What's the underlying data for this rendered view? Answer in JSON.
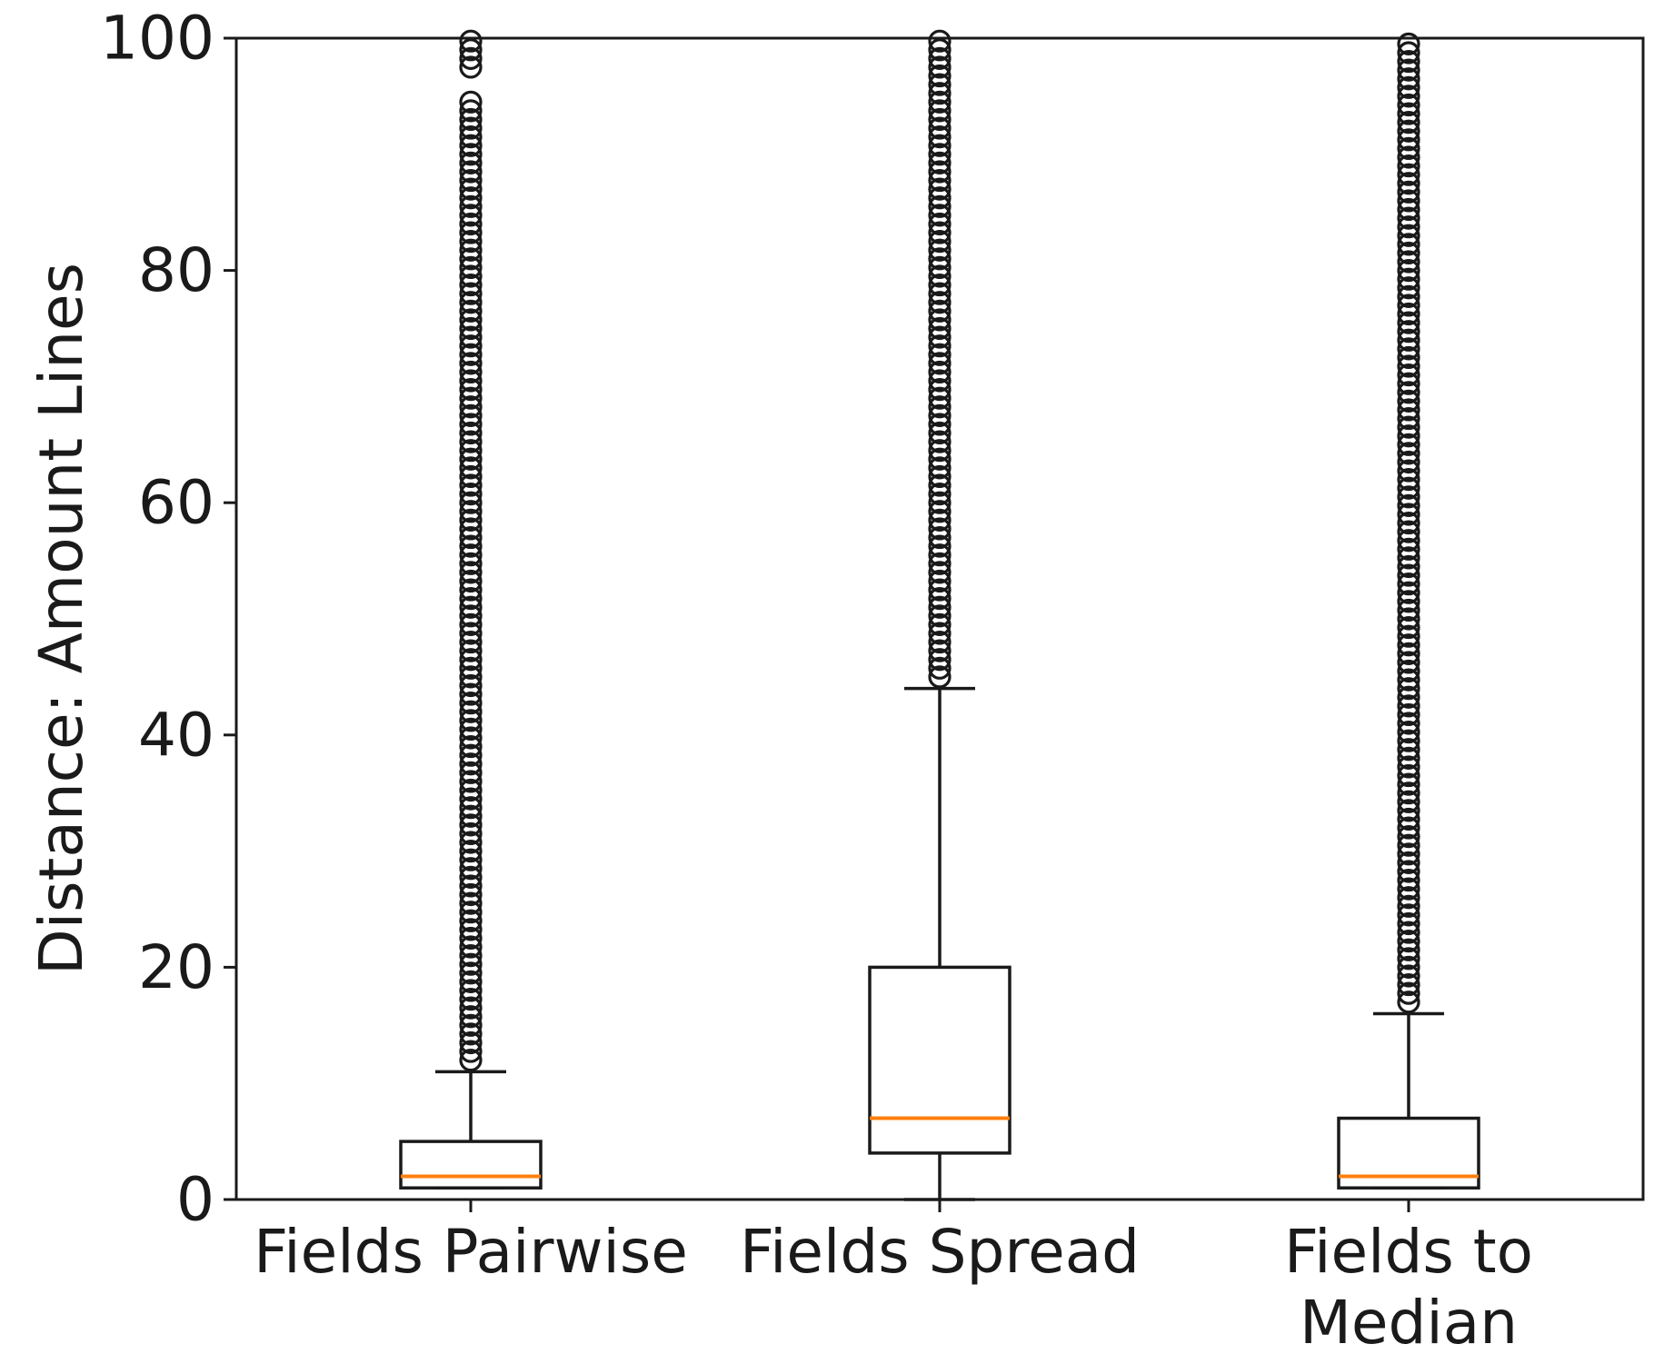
{
  "chart_data": {
    "type": "box",
    "title": "",
    "xlabel": "",
    "ylabel": "Distance: Amount Lines",
    "ylim": [
      0,
      100
    ],
    "yticks": [
      0,
      20,
      40,
      60,
      80,
      100
    ],
    "grid": false,
    "categories": [
      {
        "lines": [
          "Fields Pairwise"
        ]
      },
      {
        "lines": [
          "Fields Spread"
        ]
      },
      {
        "lines": [
          "Fields to",
          "Median"
        ]
      }
    ],
    "boxes": [
      {
        "whisker_low": 1,
        "q1": 1,
        "median": 2,
        "q3": 5,
        "whisker_high": 11,
        "outliers_from": 12,
        "outliers_to": 100,
        "outlier_gap": [
          95,
          97
        ]
      },
      {
        "whisker_low": 0,
        "q1": 4,
        "median": 7,
        "q3": 20,
        "whisker_high": 44,
        "outliers_from": 45,
        "outliers_to": 100
      },
      {
        "whisker_low": 1,
        "q1": 1,
        "median": 2,
        "q3": 7,
        "whisker_high": 16,
        "outliers_from": 17,
        "outliers_to": 100
      }
    ],
    "colors": {
      "box": "#1a1a1a",
      "median": "#ff7f0e",
      "outlier": "#1a1a1a"
    }
  }
}
